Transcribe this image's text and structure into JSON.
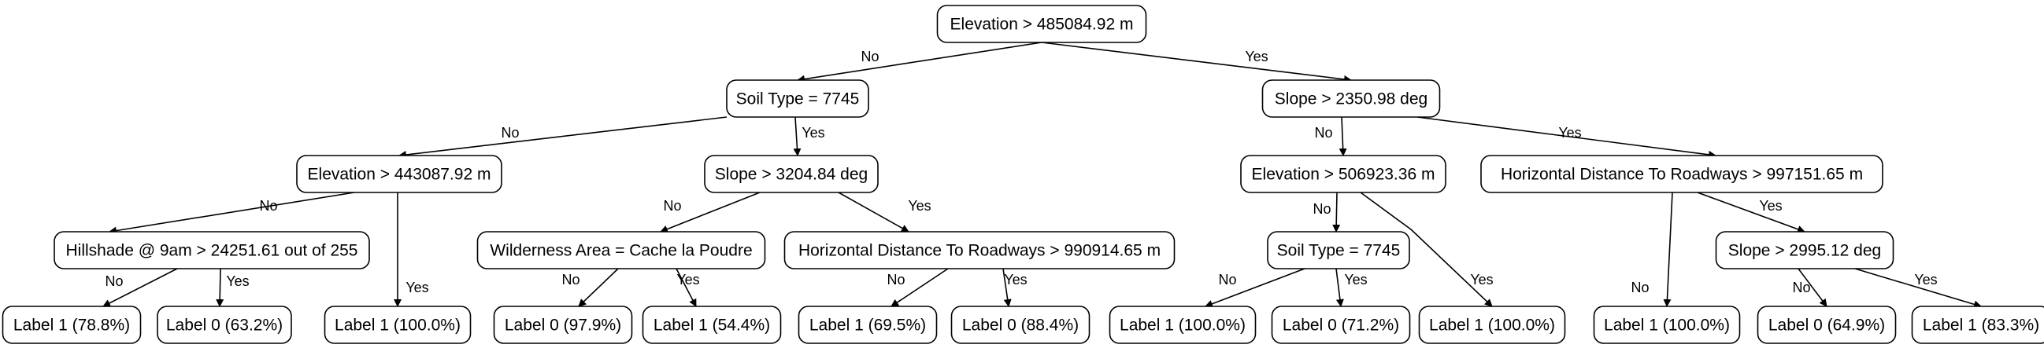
{
  "nodes": {
    "root": "Elevation > 485084.92 m",
    "n_soil1": "Soil Type = 7745",
    "n_slope1": "Slope > 2350.98 deg",
    "n_elev2": "Elevation > 443087.92 m",
    "n_slope2": "Slope > 3204.84 deg",
    "n_elev3": "Elevation > 506923.36 m",
    "n_hdr1": "Horizontal Distance To Roadways > 997151.65 m",
    "n_hill": "Hillshade @ 9am > 24251.61 out of 255",
    "n_wild": "Wilderness Area = Cache la Poudre",
    "n_hdr2": "Horizontal Distance To Roadways > 990914.65 m",
    "n_soil2": "Soil Type = 7745",
    "n_slope3": "Slope > 2995.12 deg",
    "l1": "Label 1 (78.8%)",
    "l2": "Label 0 (63.2%)",
    "l3": "Label 1 (100.0%)",
    "l4": "Label 0 (97.9%)",
    "l5": "Label 1 (54.4%)",
    "l6": "Label 1 (69.5%)",
    "l7": "Label 0 (88.4%)",
    "l8": "Label 1 (100.0%)",
    "l9": "Label 0 (71.2%)",
    "l10": "Label 1 (100.0%)",
    "l11": "Label 1 (100.0%)",
    "l12": "Label 0 (64.9%)",
    "l13": "Label 1 (83.3%)"
  },
  "edges": [
    {
      "from": "root",
      "to": "n_soil1",
      "label": "No"
    },
    {
      "from": "root",
      "to": "n_slope1",
      "label": "Yes"
    },
    {
      "from": "n_soil1",
      "to": "n_elev2",
      "label": "No"
    },
    {
      "from": "n_soil1",
      "to": "n_slope2",
      "label": "Yes"
    },
    {
      "from": "n_elev2",
      "to": "n_hill",
      "label": "No"
    },
    {
      "from": "n_elev2",
      "to": "l3",
      "label": "Yes"
    },
    {
      "from": "n_hill",
      "to": "l1",
      "label": "No"
    },
    {
      "from": "n_hill",
      "to": "l2",
      "label": "Yes"
    },
    {
      "from": "n_slope2",
      "to": "n_wild",
      "label": "No"
    },
    {
      "from": "n_slope2",
      "to": "n_hdr2",
      "label": "Yes"
    },
    {
      "from": "n_wild",
      "to": "l4",
      "label": "No"
    },
    {
      "from": "n_wild",
      "to": "l5",
      "label": "Yes"
    },
    {
      "from": "n_hdr2",
      "to": "l6",
      "label": "No"
    },
    {
      "from": "n_hdr2",
      "to": "l7",
      "label": "Yes"
    },
    {
      "from": "n_slope1",
      "to": "n_elev3",
      "label": "No"
    },
    {
      "from": "n_slope1",
      "to": "n_hdr1",
      "label": "Yes"
    },
    {
      "from": "n_elev3",
      "to": "n_soil2",
      "label": "No"
    },
    {
      "from": "n_elev3",
      "to": "l10",
      "label": "Yes"
    },
    {
      "from": "n_soil2",
      "to": "l8",
      "label": "No"
    },
    {
      "from": "n_soil2",
      "to": "l9",
      "label": "Yes"
    },
    {
      "from": "n_hdr1",
      "to": "l11",
      "label": "No"
    },
    {
      "from": "n_hdr1",
      "to": "n_slope3",
      "label": "Yes"
    },
    {
      "from": "n_slope3",
      "to": "l12",
      "label": "No"
    },
    {
      "from": "n_slope3",
      "to": "l13",
      "label": "Yes"
    }
  ]
}
